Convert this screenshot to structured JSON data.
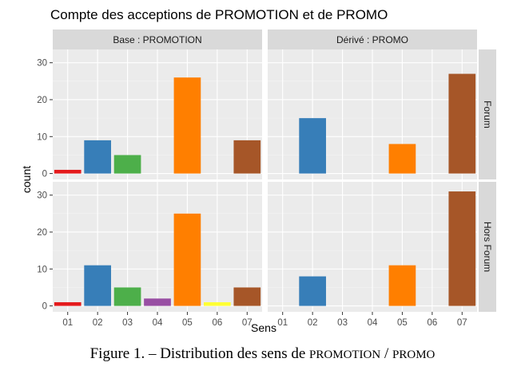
{
  "chart_data": {
    "type": "bar",
    "title": "Compte des acceptions de PROMOTION et de PROMO",
    "xlabel": "Sens",
    "ylabel": "count",
    "categories": [
      "01",
      "02",
      "03",
      "04",
      "05",
      "06",
      "07"
    ],
    "ylim": [
      0,
      32
    ],
    "yticks": [
      0,
      10,
      20,
      30
    ],
    "grid": true,
    "legend": "none",
    "colors": {
      "01": "#E41A1C",
      "02": "#377EB8",
      "03": "#4DAF4A",
      "04": "#984EA3",
      "05": "#FF7F00",
      "06": "#FFFF33",
      "07": "#A65628"
    },
    "columns": [
      "Base : PROMOTION",
      "Dérivé : PROMO"
    ],
    "rows": [
      "Forum",
      "Hors Forum"
    ],
    "panels": [
      {
        "column": "Base : PROMOTION",
        "row": "Forum",
        "values": [
          1,
          9,
          5,
          0,
          26,
          0,
          9
        ]
      },
      {
        "column": "Dérivé : PROMO",
        "row": "Forum",
        "values": [
          0,
          15,
          0,
          0,
          8,
          0,
          27
        ]
      },
      {
        "column": "Base : PROMOTION",
        "row": "Hors Forum",
        "values": [
          1,
          11,
          5,
          2,
          25,
          1,
          5
        ]
      },
      {
        "column": "Dérivé : PROMO",
        "row": "Hors Forum",
        "values": [
          0,
          8,
          0,
          0,
          11,
          0,
          31
        ]
      }
    ]
  },
  "caption": {
    "prefix": "Figure 1. – Distribution des sens de ",
    "term1": "PROMOTION",
    "separator": " / ",
    "term2": "PROMO"
  }
}
